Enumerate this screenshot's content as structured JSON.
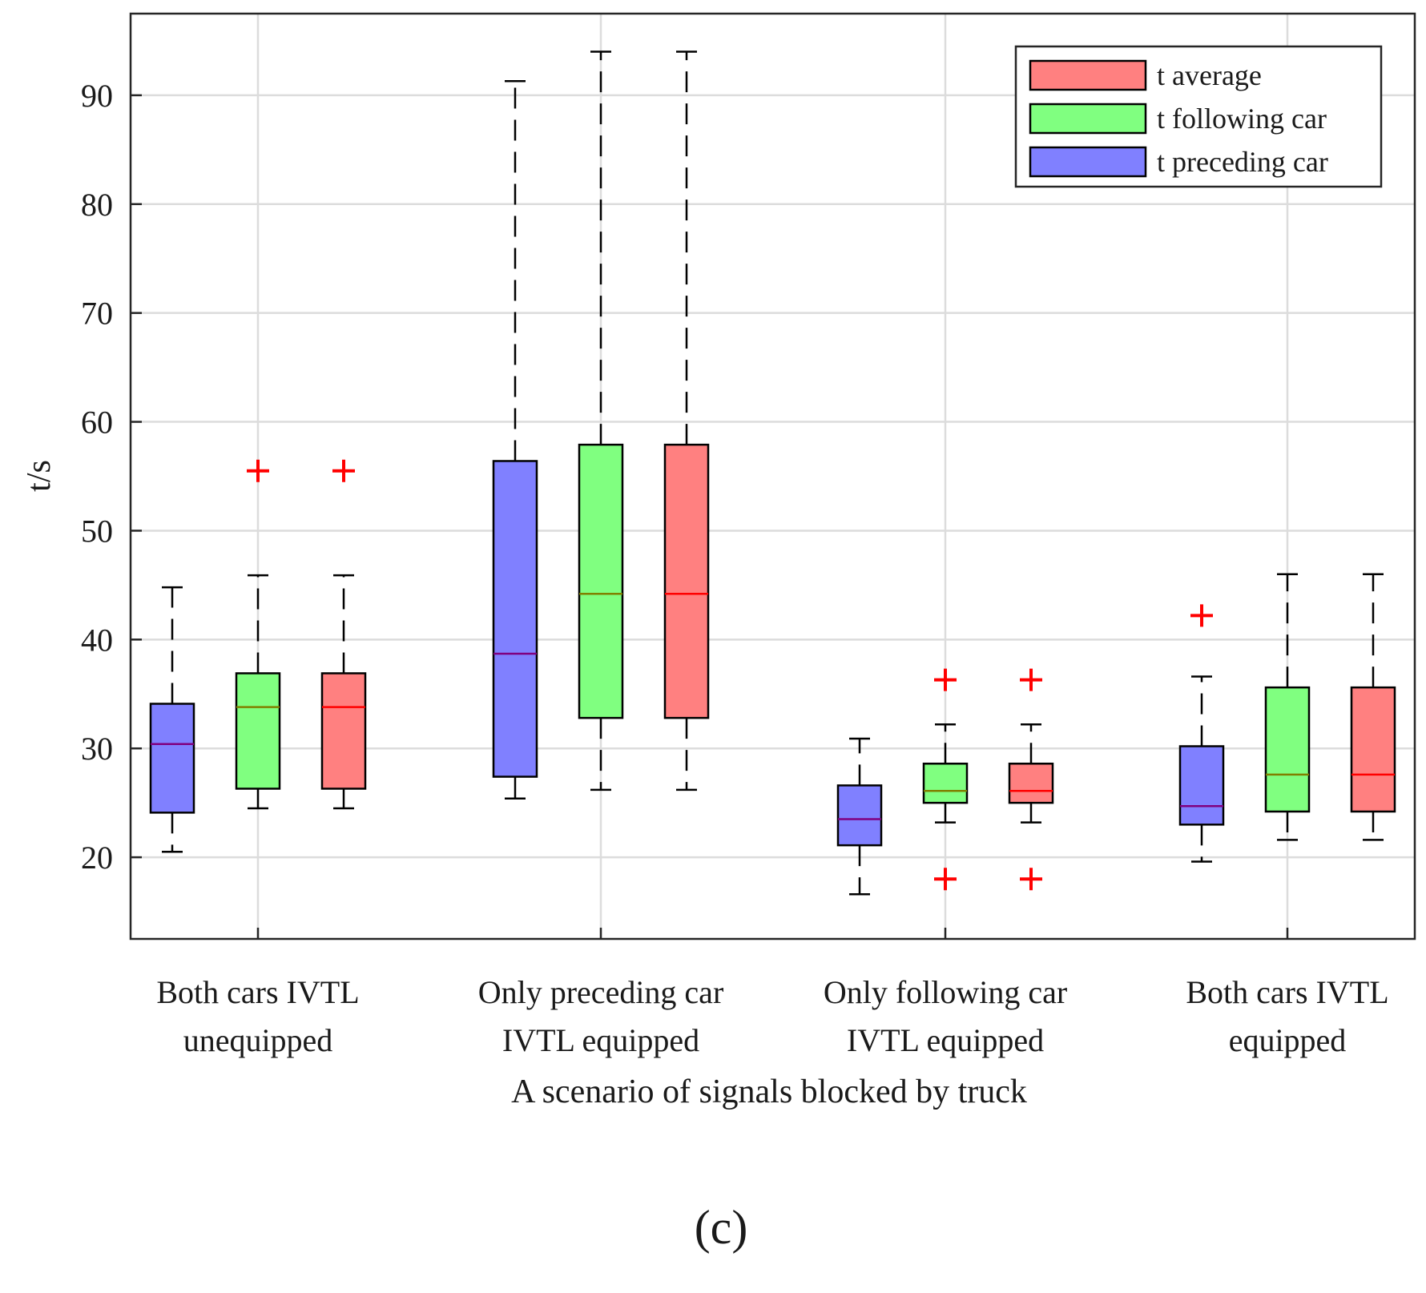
{
  "chart_data": {
    "type": "boxplot",
    "title": "",
    "xlabel": "A scenario of signals blocked by truck",
    "ylabel": "t/s",
    "panel_label": "(c)",
    "ylim": [
      12.5,
      97.5
    ],
    "yticks": [
      20,
      30,
      40,
      50,
      60,
      70,
      80,
      90
    ],
    "grid": true,
    "legend_position": "top-right",
    "categories": [
      {
        "line1": "Both cars IVTL",
        "line2": "unequipped"
      },
      {
        "line1": "Only preceding car",
        "line2": "IVTL equipped"
      },
      {
        "line1": "Only following car",
        "line2": "IVTL equipped"
      },
      {
        "line1": "Both cars IVTL",
        "line2": "equipped"
      }
    ],
    "legend": [
      {
        "label": "t average",
        "color": "#ff8080"
      },
      {
        "label": "t following car",
        "color": "#80ff80"
      },
      {
        "label": "t preceding car",
        "color": "#8080ff"
      }
    ],
    "series": [
      {
        "name": "t preceding car",
        "color": "#8080ff",
        "median_color": "#800080",
        "boxes": [
          {
            "min": 20.5,
            "q1": 24.1,
            "median": 30.4,
            "q3": 34.1,
            "max": 44.8,
            "outliers": []
          },
          {
            "min": 25.4,
            "q1": 27.4,
            "median": 38.7,
            "q3": 56.4,
            "max": 91.3,
            "outliers": []
          },
          {
            "min": 16.6,
            "q1": 21.1,
            "median": 23.5,
            "q3": 26.6,
            "max": 30.9,
            "outliers": []
          },
          {
            "min": 19.6,
            "q1": 23.0,
            "median": 24.7,
            "q3": 30.2,
            "max": 36.6,
            "outliers": [
              42.2
            ]
          }
        ]
      },
      {
        "name": "t following car",
        "color": "#80ff80",
        "median_color": "#808000",
        "boxes": [
          {
            "min": 24.5,
            "q1": 26.3,
            "median": 33.8,
            "q3": 36.9,
            "max": 45.9,
            "outliers": [
              55.5
            ]
          },
          {
            "min": 26.2,
            "q1": 32.8,
            "median": 44.2,
            "q3": 57.9,
            "max": 94.0,
            "outliers": []
          },
          {
            "min": 23.2,
            "q1": 25.0,
            "median": 26.1,
            "q3": 28.6,
            "max": 32.2,
            "outliers": [
              36.3,
              18.0
            ]
          },
          {
            "min": 21.6,
            "q1": 24.2,
            "median": 27.6,
            "q3": 35.6,
            "max": 46.0,
            "outliers": []
          }
        ]
      },
      {
        "name": "t average",
        "color": "#ff8080",
        "median_color": "#ff0000",
        "boxes": [
          {
            "min": 24.5,
            "q1": 26.3,
            "median": 33.8,
            "q3": 36.9,
            "max": 45.9,
            "outliers": [
              55.5
            ]
          },
          {
            "min": 26.2,
            "q1": 32.8,
            "median": 44.2,
            "q3": 57.9,
            "max": 94.0,
            "outliers": []
          },
          {
            "min": 23.2,
            "q1": 25.0,
            "median": 26.1,
            "q3": 28.6,
            "max": 32.2,
            "outliers": [
              36.3,
              18.0
            ]
          },
          {
            "min": 21.6,
            "q1": 24.2,
            "median": 27.6,
            "q3": 35.6,
            "max": 46.0,
            "outliers": []
          }
        ]
      }
    ]
  }
}
